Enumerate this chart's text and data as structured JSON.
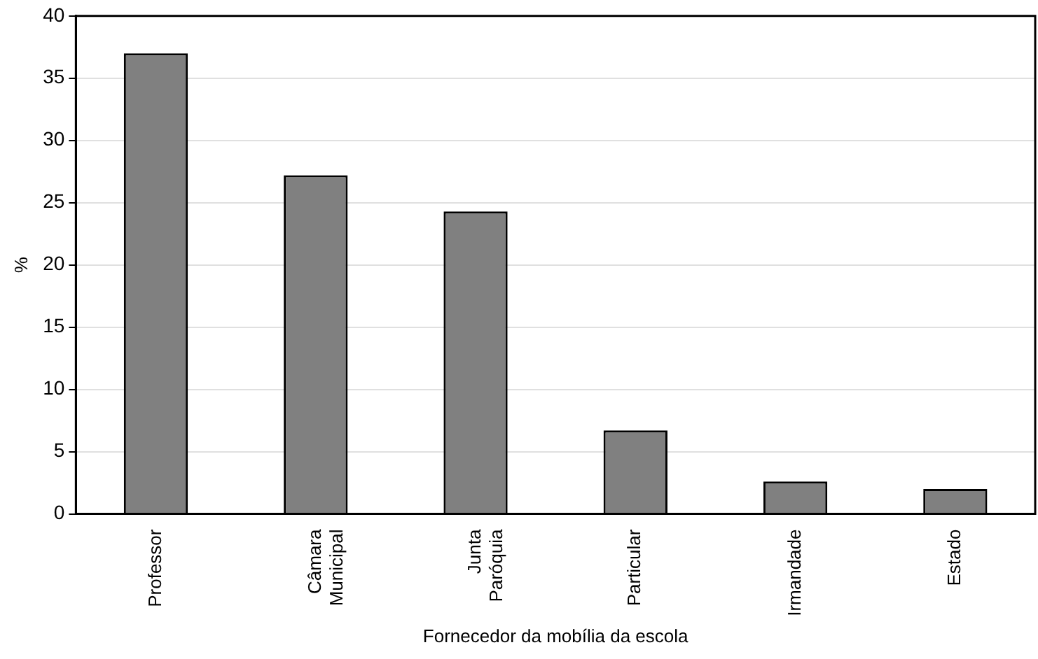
{
  "chart_data": {
    "type": "bar",
    "xlabel": "Fornecedor da mobília da escola",
    "ylabel": "%",
    "categories": [
      "Professor",
      "Câmara\nMunicipal",
      "Junta\nParóquia",
      "Particular",
      "Irmandade",
      "Estado"
    ],
    "values": [
      37.0,
      27.2,
      24.3,
      6.7,
      2.6,
      2.0
    ],
    "color": "#808080",
    "ylim": [
      0,
      40
    ],
    "yticks": [
      0,
      5,
      10,
      15,
      20,
      25,
      30,
      35,
      40
    ],
    "grid": "y",
    "legend": false
  }
}
